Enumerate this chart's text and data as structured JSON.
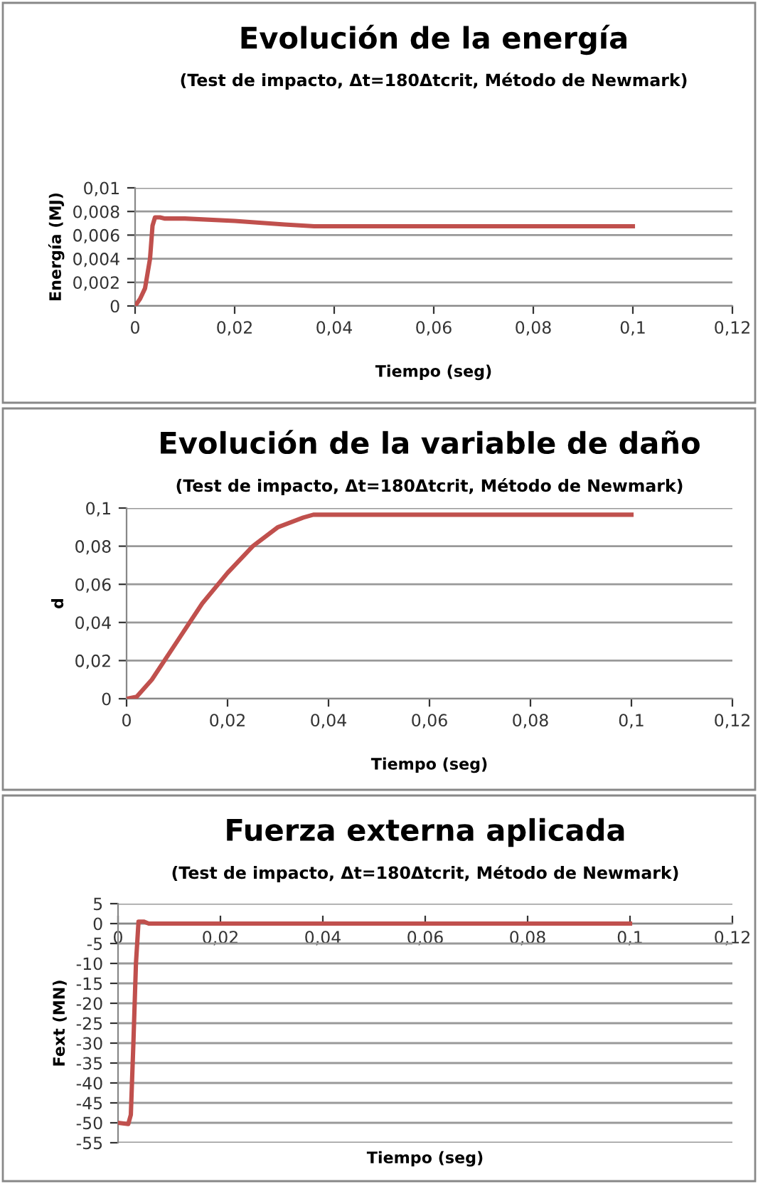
{
  "chart_data": [
    {
      "type": "line",
      "title": "Evolución de la energía",
      "subtitle": "(Test de impacto, Δt=180Δtcrit, Método de Newmark)",
      "xlabel": "Tiempo (seg)",
      "ylabel": "Energía (MJ)",
      "grid": "y",
      "legend": false,
      "marker": "none",
      "line_style": "solid",
      "series": [
        {
          "color": "#c0504d",
          "x": [
            0,
            0.001,
            0.002,
            0.003,
            0.0035,
            0.004,
            0.005,
            0.006,
            0.01,
            0.02,
            0.03,
            0.036,
            0.04,
            0.1
          ],
          "values": [
            0,
            0.0006,
            0.0015,
            0.004,
            0.0068,
            0.0075,
            0.0075,
            0.0074,
            0.0074,
            0.0072,
            0.0069,
            0.00675,
            0.00675,
            0.00675
          ]
        }
      ],
      "xlim": [
        0,
        0.12
      ],
      "xticks": [
        0,
        {
          "value": 0.02,
          "label": "0,02"
        },
        {
          "value": 0.04,
          "label": "0,04"
        },
        {
          "value": 0.06,
          "label": "0,06"
        },
        {
          "value": 0.08,
          "label": "0,08"
        },
        {
          "value": 0.1,
          "label": "0,1"
        },
        {
          "value": 0.12,
          "label": "0,12"
        }
      ],
      "ylim": [
        0,
        0.01
      ],
      "yticks": [
        0,
        {
          "value": 0.002,
          "label": "0,002"
        },
        {
          "value": 0.004,
          "label": "0,004"
        },
        {
          "value": 0.006,
          "label": "0,006"
        },
        {
          "value": 0.008,
          "label": "0,008"
        },
        {
          "value": 0.01,
          "label": "0,01"
        }
      ]
    },
    {
      "type": "line",
      "title": "Evolución de la variable de daño",
      "subtitle": "(Test de impacto, Δt=180Δtcrit, Método de Newmark)",
      "xlabel": "Tiempo (seg)",
      "ylabel": "d",
      "grid": "y",
      "legend": false,
      "marker": "none",
      "line_style": "solid",
      "series": [
        {
          "color": "#c0504d",
          "x": [
            0,
            0.002,
            0.005,
            0.01,
            0.015,
            0.02,
            0.025,
            0.03,
            0.035,
            0.037,
            0.1
          ],
          "values": [
            0,
            0.001,
            0.01,
            0.03,
            0.05,
            0.066,
            0.08,
            0.09,
            0.095,
            0.0965,
            0.0965
          ]
        }
      ],
      "xlim": [
        0,
        0.12
      ],
      "xticks": [
        0,
        {
          "value": 0.02,
          "label": "0,02"
        },
        {
          "value": 0.04,
          "label": "0,04"
        },
        {
          "value": 0.06,
          "label": "0,06"
        },
        {
          "value": 0.08,
          "label": "0,08"
        },
        {
          "value": 0.1,
          "label": "0,1"
        },
        {
          "value": 0.12,
          "label": "0,12"
        }
      ],
      "ylim": [
        0,
        0.1
      ],
      "yticks": [
        0,
        {
          "value": 0.02,
          "label": "0,02"
        },
        {
          "value": 0.04,
          "label": "0,04"
        },
        {
          "value": 0.06,
          "label": "0,06"
        },
        {
          "value": 0.08,
          "label": "0,08"
        },
        {
          "value": 0.1,
          "label": "0,1"
        }
      ]
    },
    {
      "type": "line",
      "title": "Fuerza externa aplicada",
      "subtitle": "(Test de impacto, Δt=180Δtcrit, Método de Newmark)",
      "xlabel": "Tiempo (seg)",
      "ylabel": "Fext (MN)",
      "grid": "y",
      "legend": false,
      "marker": "none",
      "line_style": "solid",
      "series": [
        {
          "color": "#c0504d",
          "x": [
            0,
            0.002,
            0.0025,
            0.003,
            0.0035,
            0.004,
            0.005,
            0.006,
            0.1
          ],
          "values": [
            -50,
            -50.3,
            -48,
            -30,
            -10,
            0.5,
            0.5,
            0,
            0
          ]
        }
      ],
      "xlim": [
        0,
        0.12
      ],
      "xticks": [
        0,
        {
          "value": 0.02,
          "label": "0,02"
        },
        {
          "value": 0.04,
          "label": "0,04"
        },
        {
          "value": 0.06,
          "label": "0,06"
        },
        {
          "value": 0.08,
          "label": "0,08"
        },
        {
          "value": 0.1,
          "label": "0,1"
        },
        {
          "value": 0.12,
          "label": "0,12"
        }
      ],
      "ylim": [
        -55,
        5
      ],
      "yticks": [
        5,
        0,
        -5,
        -10,
        -15,
        -20,
        -25,
        -30,
        -35,
        -40,
        -45,
        -50,
        -55
      ]
    }
  ]
}
